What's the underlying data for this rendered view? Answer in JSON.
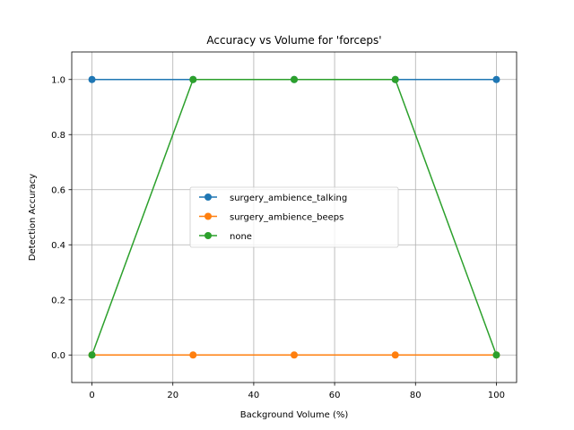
{
  "chart_data": {
    "type": "line",
    "title": "Accuracy vs Volume for 'forceps'",
    "xlabel": "Background Volume (%)",
    "ylabel": "Detection Accuracy",
    "x": [
      0,
      25,
      50,
      75,
      100
    ],
    "xlim": [
      -5,
      105
    ],
    "ylim": [
      -0.1,
      1.1
    ],
    "xticks": [
      0,
      20,
      40,
      60,
      80,
      100
    ],
    "xtick_labels": [
      "0",
      "20",
      "40",
      "60",
      "80",
      "100"
    ],
    "yticks": [
      0.0,
      0.2,
      0.4,
      0.6,
      0.8,
      1.0
    ],
    "ytick_labels": [
      "0.0",
      "0.2",
      "0.4",
      "0.6",
      "0.8",
      "1.0"
    ],
    "grid": true,
    "legend_position": "center",
    "series": [
      {
        "name": "surgery_ambience_talking",
        "color": "#1f77b4",
        "values": [
          1.0,
          1.0,
          1.0,
          1.0,
          1.0
        ]
      },
      {
        "name": "surgery_ambience_beeps",
        "color": "#ff7f0e",
        "values": [
          0.0,
          0.0,
          0.0,
          0.0,
          0.0
        ]
      },
      {
        "name": "none",
        "color": "#2ca02c",
        "values": [
          0.0,
          1.0,
          1.0,
          1.0,
          0.0
        ]
      }
    ]
  }
}
